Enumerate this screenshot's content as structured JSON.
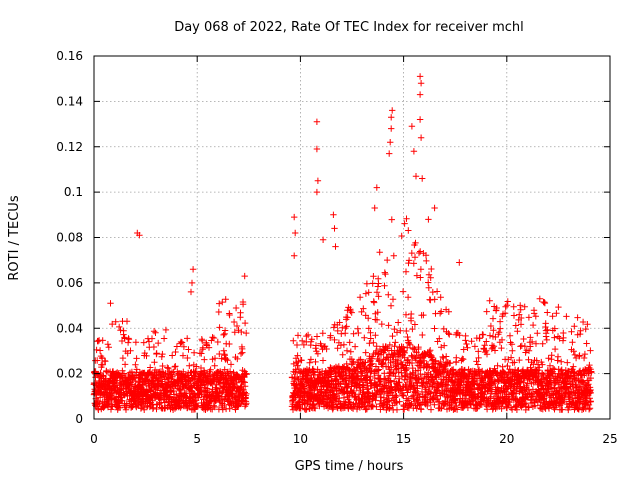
{
  "chart_data": {
    "type": "scatter",
    "title": "Day 068 of 2022, Rate Of TEC Index for receiver mchl",
    "xlabel": "GPS time / hours",
    "ylabel": "ROTI / TECUs",
    "xlim": [
      0,
      25
    ],
    "ylim": [
      0,
      0.16
    ],
    "x_ticks": [
      0,
      5,
      10,
      15,
      20,
      25
    ],
    "x_tick_labels": [
      "0",
      "5",
      "10",
      "15",
      "20",
      "25"
    ],
    "y_ticks": [
      0,
      0.02,
      0.04,
      0.06,
      0.08,
      0.1,
      0.12,
      0.14,
      0.16
    ],
    "y_tick_labels": [
      "0",
      "0.02",
      "0.04",
      "0.06",
      "0.08",
      "0.1",
      "0.12",
      "0.14",
      "0.16"
    ],
    "grid": true,
    "marker": "+",
    "series": [
      {
        "name": "ROTI",
        "color": "#ff0000",
        "observed_segments": [
          [
            0,
            7.4
          ],
          [
            9.6,
            24.1
          ]
        ],
        "outliers": [
          {
            "x": 0.8,
            "y": 0.051
          },
          {
            "x": 2.1,
            "y": 0.082
          },
          {
            "x": 2.2,
            "y": 0.081
          },
          {
            "x": 4.8,
            "y": 0.066
          },
          {
            "x": 4.75,
            "y": 0.06
          },
          {
            "x": 4.7,
            "y": 0.056
          },
          {
            "x": 7.3,
            "y": 0.063
          },
          {
            "x": 9.7,
            "y": 0.089
          },
          {
            "x": 9.75,
            "y": 0.082
          },
          {
            "x": 9.7,
            "y": 0.072
          },
          {
            "x": 10.8,
            "y": 0.131
          },
          {
            "x": 10.8,
            "y": 0.119
          },
          {
            "x": 10.85,
            "y": 0.105
          },
          {
            "x": 10.8,
            "y": 0.1
          },
          {
            "x": 11.1,
            "y": 0.079
          },
          {
            "x": 11.6,
            "y": 0.09
          },
          {
            "x": 11.65,
            "y": 0.084
          },
          {
            "x": 11.7,
            "y": 0.076
          },
          {
            "x": 13.7,
            "y": 0.102
          },
          {
            "x": 13.6,
            "y": 0.093
          },
          {
            "x": 14.3,
            "y": 0.117
          },
          {
            "x": 14.35,
            "y": 0.122
          },
          {
            "x": 14.4,
            "y": 0.128
          },
          {
            "x": 14.4,
            "y": 0.133
          },
          {
            "x": 14.45,
            "y": 0.136
          },
          {
            "x": 15.4,
            "y": 0.129
          },
          {
            "x": 15.5,
            "y": 0.118
          },
          {
            "x": 15.6,
            "y": 0.107
          },
          {
            "x": 15.8,
            "y": 0.151
          },
          {
            "x": 15.85,
            "y": 0.148
          },
          {
            "x": 15.8,
            "y": 0.143
          },
          {
            "x": 15.8,
            "y": 0.132
          },
          {
            "x": 15.85,
            "y": 0.124
          },
          {
            "x": 15.9,
            "y": 0.106
          },
          {
            "x": 16.5,
            "y": 0.093
          },
          {
            "x": 16.2,
            "y": 0.088
          },
          {
            "x": 17.7,
            "y": 0.069
          },
          {
            "x": 21.6,
            "y": 0.053
          }
        ]
      }
    ]
  }
}
